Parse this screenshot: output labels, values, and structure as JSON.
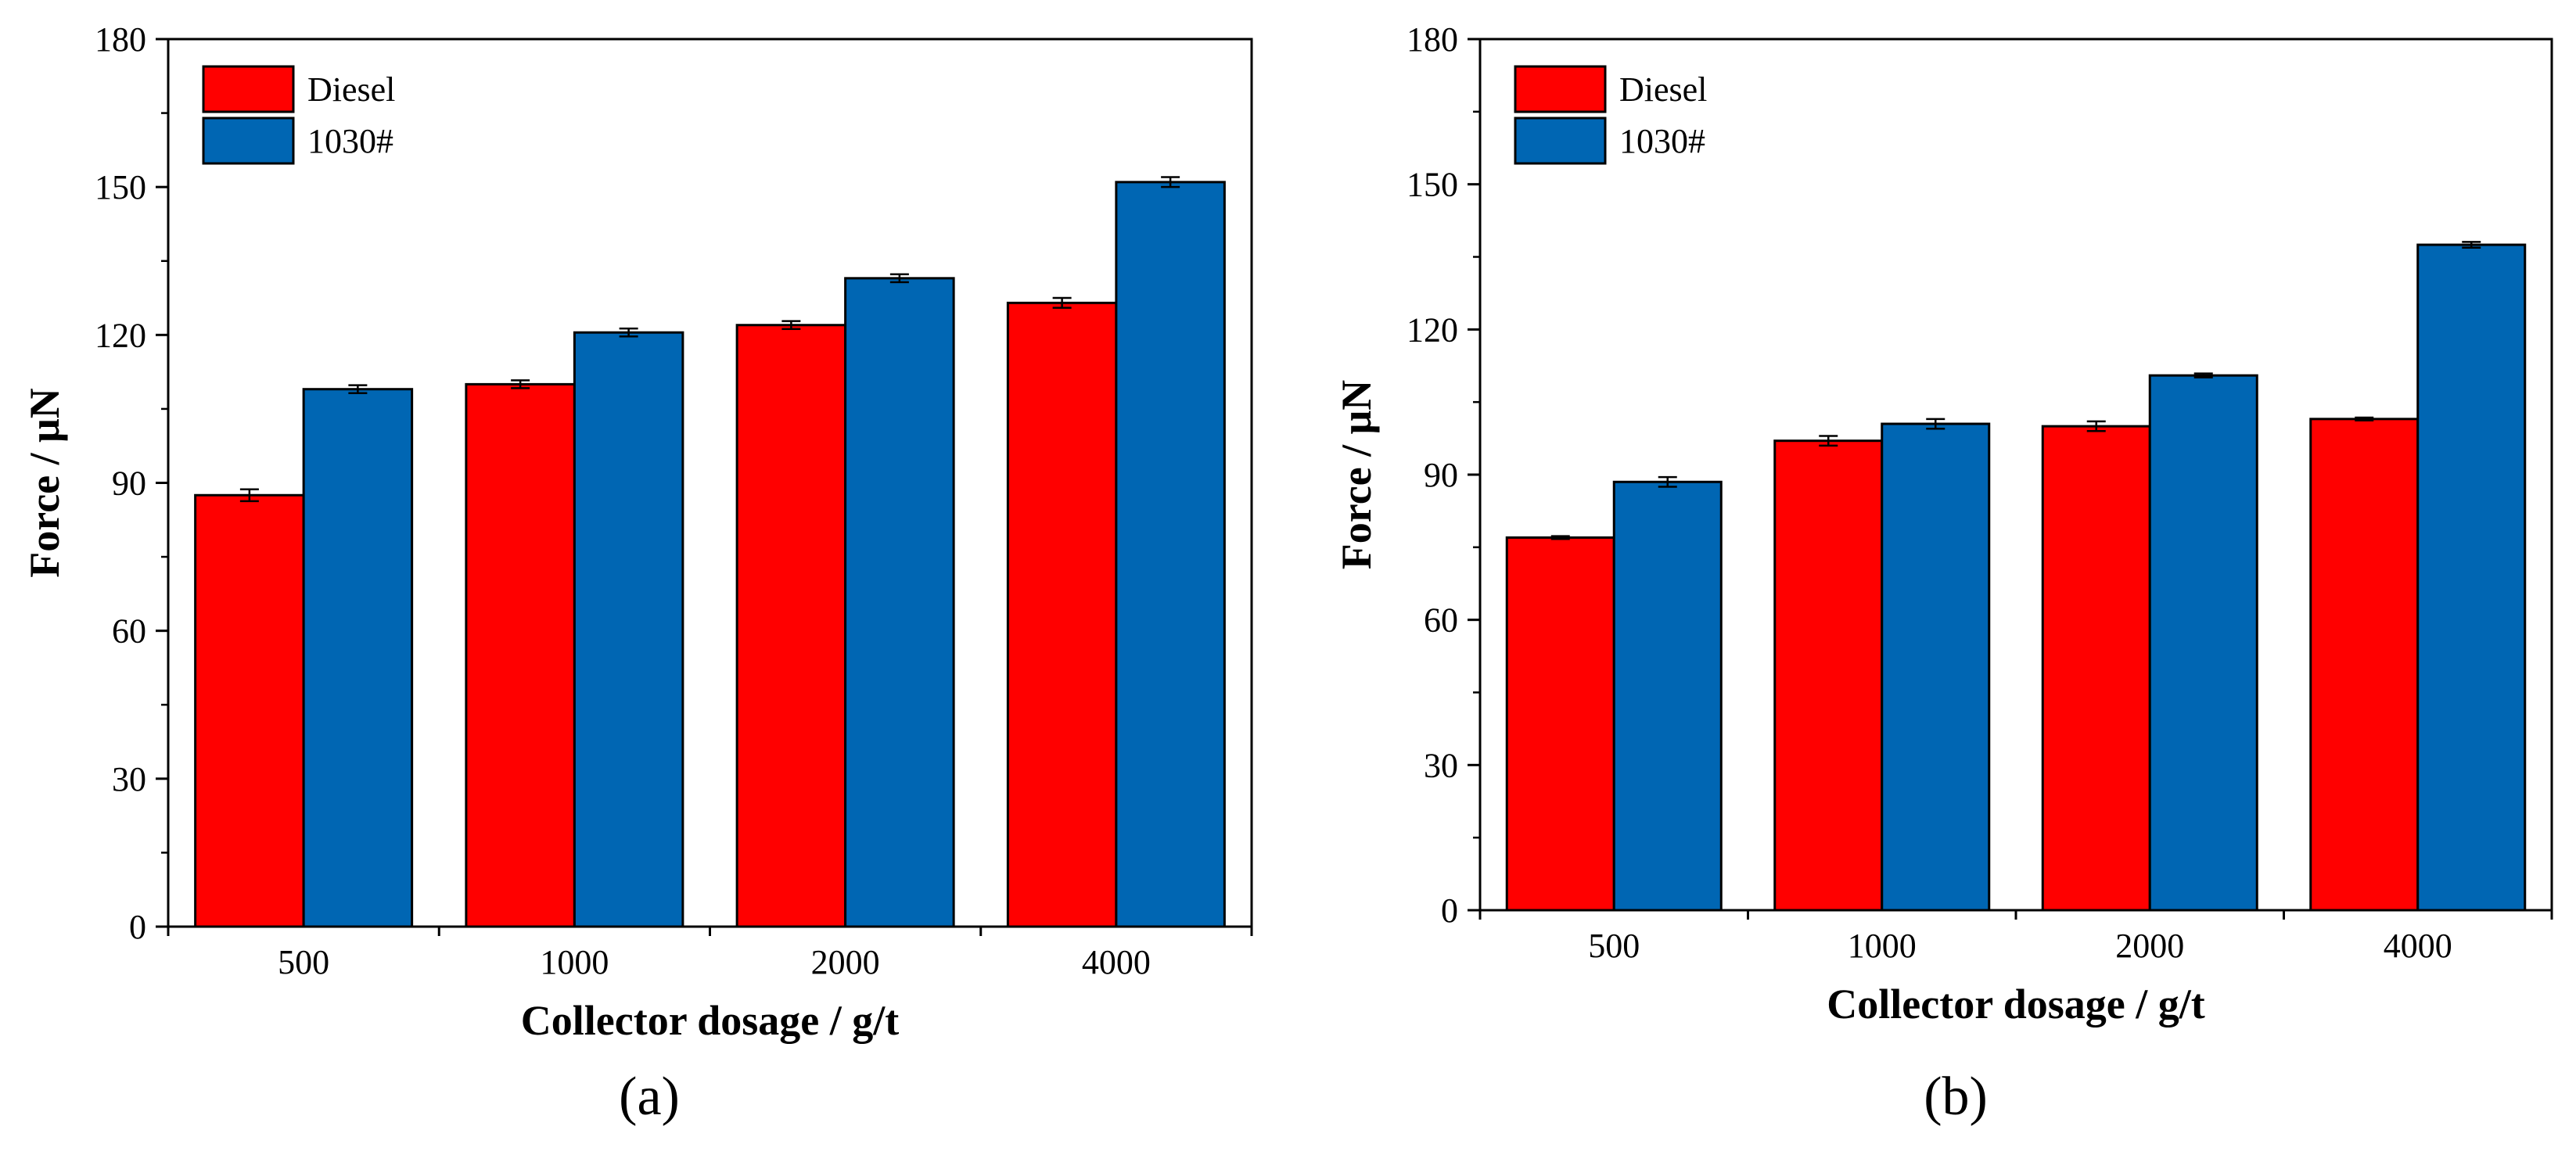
{
  "colors": {
    "diesel": "#ff0000",
    "c1030": "#0066b3",
    "axis": "#000000"
  },
  "chart_data": [
    {
      "type": "bar",
      "panel": "(a)",
      "categories": [
        "500",
        "1000",
        "2000",
        "4000"
      ],
      "series": [
        {
          "name": "Diesel",
          "values": [
            87.5,
            110,
            122,
            126.5
          ],
          "errors": [
            1.2,
            0.8,
            0.8,
            1.0
          ]
        },
        {
          "name": "1030#",
          "values": [
            109,
            120.5,
            131.5,
            151
          ],
          "errors": [
            0.8,
            0.8,
            0.8,
            1.0
          ]
        }
      ],
      "xlabel": "Collector dosage / g/t",
      "ylabel": "Force / μN",
      "ylim": [
        0,
        180
      ],
      "yticks": [
        "0",
        "30",
        "60",
        "90",
        "120",
        "150",
        "180"
      ],
      "legend_position": "top-left"
    },
    {
      "type": "bar",
      "panel": "(b)",
      "categories": [
        "500",
        "1000",
        "2000",
        "4000"
      ],
      "series": [
        {
          "name": "Diesel",
          "values": [
            77,
            97,
            100,
            101.5
          ],
          "errors": [
            0.3,
            1.0,
            1.0,
            0.3
          ]
        },
        {
          "name": "1030#",
          "values": [
            88.5,
            100.5,
            110.5,
            137.5
          ],
          "errors": [
            1.0,
            1.0,
            0.4,
            0.6
          ]
        }
      ],
      "xlabel": "Collector dosage / g/t",
      "ylabel": "Force / μN",
      "ylim": [
        0,
        180
      ],
      "yticks": [
        "0",
        "30",
        "60",
        "90",
        "120",
        "150",
        "180"
      ],
      "legend_position": "top-left"
    }
  ]
}
